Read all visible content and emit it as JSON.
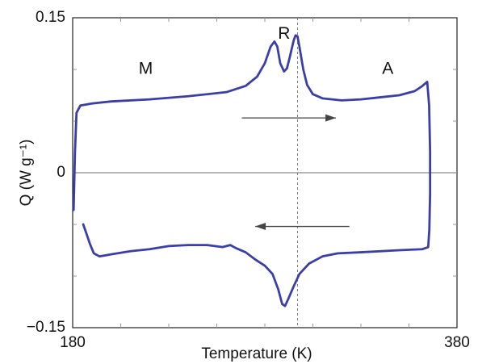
{
  "chart_data": {
    "type": "line",
    "title": "",
    "xlabel": "Temperature (K)",
    "ylabel": "Q (W g⁻¹)",
    "xlim": [
      180,
      380
    ],
    "ylim": [
      -0.15,
      0.15
    ],
    "x_ticks": [
      {
        "value": 180,
        "label": "180"
      },
      {
        "value": 380,
        "label": "380"
      }
    ],
    "y_ticks": [
      {
        "value": 0.15,
        "label": "0.15"
      },
      {
        "value": 0,
        "label": "0"
      },
      {
        "value": -0.15,
        "label": "−0.15"
      }
    ],
    "grid": false,
    "colors": {
      "curve": "#3a3fa8",
      "zero_line": "#8a8a8a",
      "vertical_marker": "#777777",
      "arrow": "#444444",
      "frame": "#222222"
    },
    "annotations": [
      {
        "text": "M",
        "x": 218,
        "y": 0.1
      },
      {
        "text": "R",
        "x": 290,
        "y": 0.134
      },
      {
        "text": "A",
        "x": 344,
        "y": 0.1
      }
    ],
    "vertical_marker_x": 297,
    "arrows": [
      {
        "direction": "right",
        "x_from": 268,
        "x_to": 317,
        "y": 0.053
      },
      {
        "direction": "left",
        "x_from": 324,
        "x_to": 275,
        "y": -0.052
      }
    ],
    "series": [
      {
        "name": "",
        "points": [
          [
            180.5,
            -0.036
          ],
          [
            181.2,
            0.02
          ],
          [
            182.0,
            0.058
          ],
          [
            184.0,
            0.065
          ],
          [
            190,
            0.067
          ],
          [
            200,
            0.069
          ],
          [
            220,
            0.071
          ],
          [
            240,
            0.074
          ],
          [
            260,
            0.078
          ],
          [
            270,
            0.084
          ],
          [
            276,
            0.093
          ],
          [
            280,
            0.106
          ],
          [
            283,
            0.122
          ],
          [
            285,
            0.127
          ],
          [
            286.5,
            0.122
          ],
          [
            288,
            0.106
          ],
          [
            290,
            0.098
          ],
          [
            291.5,
            0.101
          ],
          [
            293,
            0.112
          ],
          [
            295,
            0.128
          ],
          [
            296,
            0.133
          ],
          [
            297,
            0.132
          ],
          [
            298,
            0.122
          ],
          [
            300,
            0.1
          ],
          [
            302,
            0.085
          ],
          [
            305,
            0.076
          ],
          [
            310,
            0.072
          ],
          [
            320,
            0.07
          ],
          [
            330,
            0.071
          ],
          [
            340,
            0.073
          ],
          [
            350,
            0.075
          ],
          [
            358,
            0.079
          ],
          [
            362,
            0.084
          ],
          [
            364.5,
            0.088
          ],
          [
            365.5,
            0.065
          ],
          [
            366.0,
            0.02
          ],
          [
            366.0,
            -0.02
          ],
          [
            365.6,
            -0.055
          ],
          [
            365.0,
            -0.072
          ],
          [
            362,
            -0.074
          ],
          [
            350,
            -0.075
          ],
          [
            330,
            -0.077
          ],
          [
            318,
            -0.078
          ],
          [
            310,
            -0.081
          ],
          [
            303,
            -0.088
          ],
          [
            298,
            -0.098
          ],
          [
            295,
            -0.11
          ],
          [
            292,
            -0.123
          ],
          [
            290.5,
            -0.129
          ],
          [
            289,
            -0.127
          ],
          [
            287,
            -0.113
          ],
          [
            284,
            -0.098
          ],
          [
            280,
            -0.09
          ],
          [
            275,
            -0.084
          ],
          [
            270,
            -0.077
          ],
          [
            265,
            -0.073
          ],
          [
            262,
            -0.07
          ],
          [
            258,
            -0.072
          ],
          [
            250,
            -0.07
          ],
          [
            240,
            -0.07
          ],
          [
            230,
            -0.071
          ],
          [
            220,
            -0.074
          ],
          [
            210,
            -0.076
          ],
          [
            200,
            -0.079
          ],
          [
            194,
            -0.081
          ],
          [
            191,
            -0.078
          ],
          [
            189,
            -0.069
          ],
          [
            187,
            -0.058
          ],
          [
            185.5,
            -0.05
          ]
        ]
      }
    ]
  }
}
